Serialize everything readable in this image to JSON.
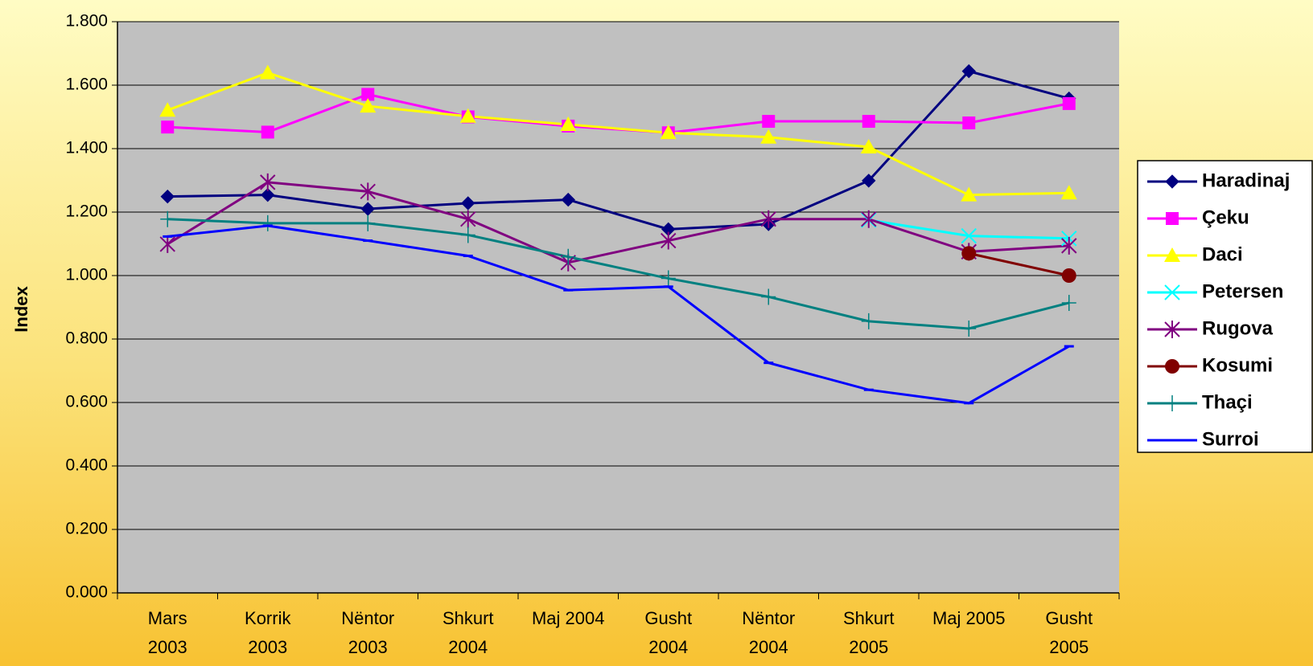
{
  "chart_data": {
    "type": "line",
    "y_label": "Index",
    "categories": [
      "Mars 2003",
      "Korrik 2003",
      "Nëntor 2003",
      "Shkurt 2004",
      "Maj 2004",
      "Gusht 2004",
      "Nëntor 2004",
      "Shkurt 2005",
      "Maj 2005",
      "Gusht 2005"
    ],
    "series": [
      {
        "name": "Haradinaj",
        "color": "#000080",
        "marker": "diamond",
        "values": [
          1.249,
          1.254,
          1.21,
          1.228,
          1.239,
          1.146,
          1.162,
          1.299,
          1.644,
          1.558
        ]
      },
      {
        "name": "Çeku",
        "color": "#ff00ff",
        "marker": "square",
        "values": [
          1.468,
          1.452,
          1.571,
          1.5,
          1.471,
          1.45,
          1.486,
          1.486,
          1.481,
          1.542
        ]
      },
      {
        "name": "Daci",
        "color": "#ffff00",
        "marker": "triangle",
        "values": [
          1.521,
          1.639,
          1.534,
          1.502,
          1.476,
          1.45,
          1.436,
          1.405,
          1.254,
          1.26
        ]
      },
      {
        "name": "Petersen",
        "color": "#00ffff",
        "marker": "x",
        "values": [
          null,
          null,
          null,
          null,
          null,
          null,
          null,
          1.175,
          1.125,
          1.117
        ]
      },
      {
        "name": "Rugova",
        "color": "#800080",
        "marker": "star",
        "values": [
          1.099,
          1.294,
          1.265,
          1.178,
          1.041,
          1.11,
          1.178,
          1.178,
          1.075,
          1.094
        ]
      },
      {
        "name": "Kosumi",
        "color": "#800000",
        "marker": "circle",
        "values": [
          null,
          null,
          null,
          null,
          null,
          null,
          null,
          null,
          1.07,
          1.0
        ]
      },
      {
        "name": "Thaçi",
        "color": "#008080",
        "marker": "plus",
        "values": [
          1.178,
          1.165,
          1.165,
          1.128,
          1.059,
          0.991,
          0.933,
          0.856,
          0.833,
          0.914
        ]
      },
      {
        "name": "Surroi",
        "color": "#0000ff",
        "marker": "dash",
        "values": [
          1.123,
          1.157,
          1.11,
          1.062,
          0.954,
          0.965,
          0.725,
          0.64,
          0.598,
          0.777
        ]
      }
    ],
    "ylim": [
      0,
      1.8
    ],
    "yticks": [
      {
        "value": 0,
        "label": "0.000"
      },
      {
        "value": 0.2,
        "label": "0.200"
      },
      {
        "value": 0.4,
        "label": "0.400"
      },
      {
        "value": 0.6,
        "label": "0.600"
      },
      {
        "value": 0.8,
        "label": "0.800"
      },
      {
        "value": 1.0,
        "label": "1.000"
      },
      {
        "value": 1.2,
        "label": "1.200"
      },
      {
        "value": 1.4,
        "label": "1.400"
      },
      {
        "value": 1.6,
        "label": "1.600"
      },
      {
        "value": 1.8,
        "label": "1.800"
      }
    ],
    "grid": true,
    "legend": "right"
  }
}
